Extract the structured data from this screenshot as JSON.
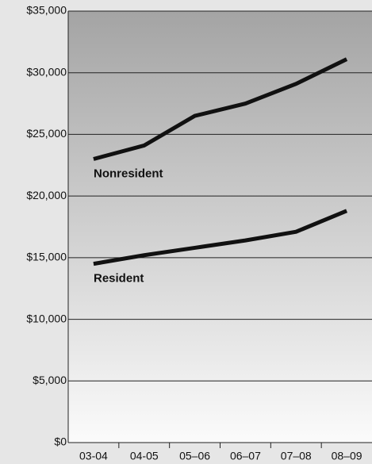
{
  "chart_data": {
    "type": "line",
    "categories": [
      "03-04",
      "04-05",
      "05–06",
      "06–07",
      "07–08",
      "08–09"
    ],
    "series": [
      {
        "name": "Nonresident",
        "color": "#111111",
        "values": [
          23000,
          24100,
          26500,
          27500,
          29100,
          31100
        ]
      },
      {
        "name": "Resident",
        "color": "#111111",
        "values": [
          14500,
          15200,
          15800,
          16400,
          17100,
          18800
        ]
      }
    ],
    "ylim": [
      0,
      35000
    ],
    "yticks": [
      {
        "value": 0,
        "label": "$0"
      },
      {
        "value": 5000,
        "label": "$5,000"
      },
      {
        "value": 10000,
        "label": "$10,000"
      },
      {
        "value": 15000,
        "label": "$15,000"
      },
      {
        "value": 20000,
        "label": "$20,000"
      },
      {
        "value": 25000,
        "label": "$25,000"
      },
      {
        "value": 30000,
        "label": "$30,000"
      },
      {
        "value": 35000,
        "label": "$35,000"
      }
    ],
    "grid": true
  }
}
